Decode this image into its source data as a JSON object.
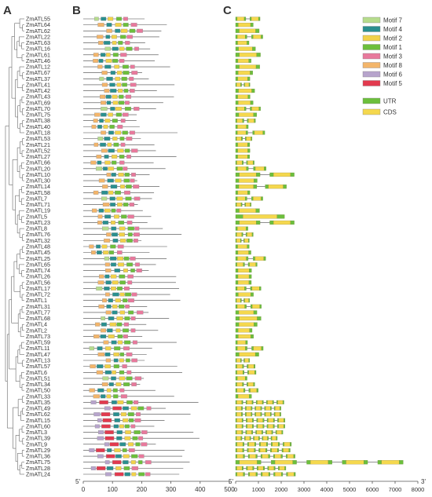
{
  "panels": {
    "a": "A",
    "b": "B",
    "c": "C"
  },
  "genes": [
    "ZmATL55",
    "ZmATL64",
    "ZmATL62",
    "ZmATL22",
    "ZmATL63",
    "ZmATL16",
    "ZmATL61",
    "ZmATL46",
    "ZmATL12",
    "ZmATL67",
    "ZmATL37",
    "ZmATL41",
    "ZmATL42",
    "ZmATL43",
    "ZmATL69",
    "ZmATL70",
    "ZmATL75",
    "ZmATL38",
    "ZmATL40",
    "ZmATL18",
    "ZmATL53",
    "ZmATL21",
    "ZmATL52",
    "ZmATL27",
    "ZmATL66",
    "ZmATL20",
    "ZmATL10",
    "ZmATL30",
    "ZmATL14",
    "ZmATL58",
    "ZmATL7",
    "ZmATL71",
    "ZmATL19",
    "ZmATL5",
    "ZmATL23",
    "ZmATL8",
    "ZmATL76",
    "ZmATL32",
    "ZmATL48",
    "ZmATL45",
    "ZmATL25",
    "ZmATL65",
    "ZmATL74",
    "ZmATL26",
    "ZmATL56",
    "ZmATL17",
    "ZmATL72",
    "ZmATL1",
    "ZmATL31",
    "ZmATL77",
    "ZmATL68",
    "ZmATL4",
    "ZmATL2",
    "ZmATL73",
    "ZmATL59",
    "ZmATL11",
    "ZmATL47",
    "ZmATL13",
    "ZmATL57",
    "ZmATL6",
    "ZmATL51",
    "ZmATL34",
    "ZmATL50",
    "ZmATL33",
    "ZmATL35",
    "ZmATL49",
    "ZmATL62b",
    "ZmATL15",
    "ZmATL60",
    "ZmATL3",
    "ZmATL39",
    "ZmATL9",
    "ZmATL29",
    "ZmATL36",
    "ZmATL75b",
    "ZmATL28",
    "ZmATL24"
  ],
  "legend": {
    "motifs": [
      {
        "label": "Motif 7",
        "color": "#b6dc8c"
      },
      {
        "label": "Motif 4",
        "color": "#2a8f8f"
      },
      {
        "label": "Motif 2",
        "color": "#f2d24a"
      },
      {
        "label": "Motif 1",
        "color": "#6cbf3c"
      },
      {
        "label": "Motif 3",
        "color": "#e8799c"
      },
      {
        "label": "Motif 8",
        "color": "#f3b56a"
      },
      {
        "label": "Motif 6",
        "color": "#b7a4cc"
      },
      {
        "label": "Motif 5",
        "color": "#e23a4e"
      }
    ],
    "structure": [
      {
        "label": "UTR",
        "color": "#6cbf3c"
      },
      {
        "label": "CDS",
        "color": "#f5d84e"
      }
    ]
  },
  "axis_b": {
    "ticks": [
      "0",
      "100",
      "200",
      "300",
      "400",
      "500"
    ],
    "end_label": "5'"
  },
  "axis_c": {
    "ticks": [
      "0",
      "1000",
      "2000",
      "3000",
      "4000",
      "5000",
      "6000",
      "7000",
      "8000"
    ],
    "start_label": "5'",
    "end_label": "3'"
  }
}
